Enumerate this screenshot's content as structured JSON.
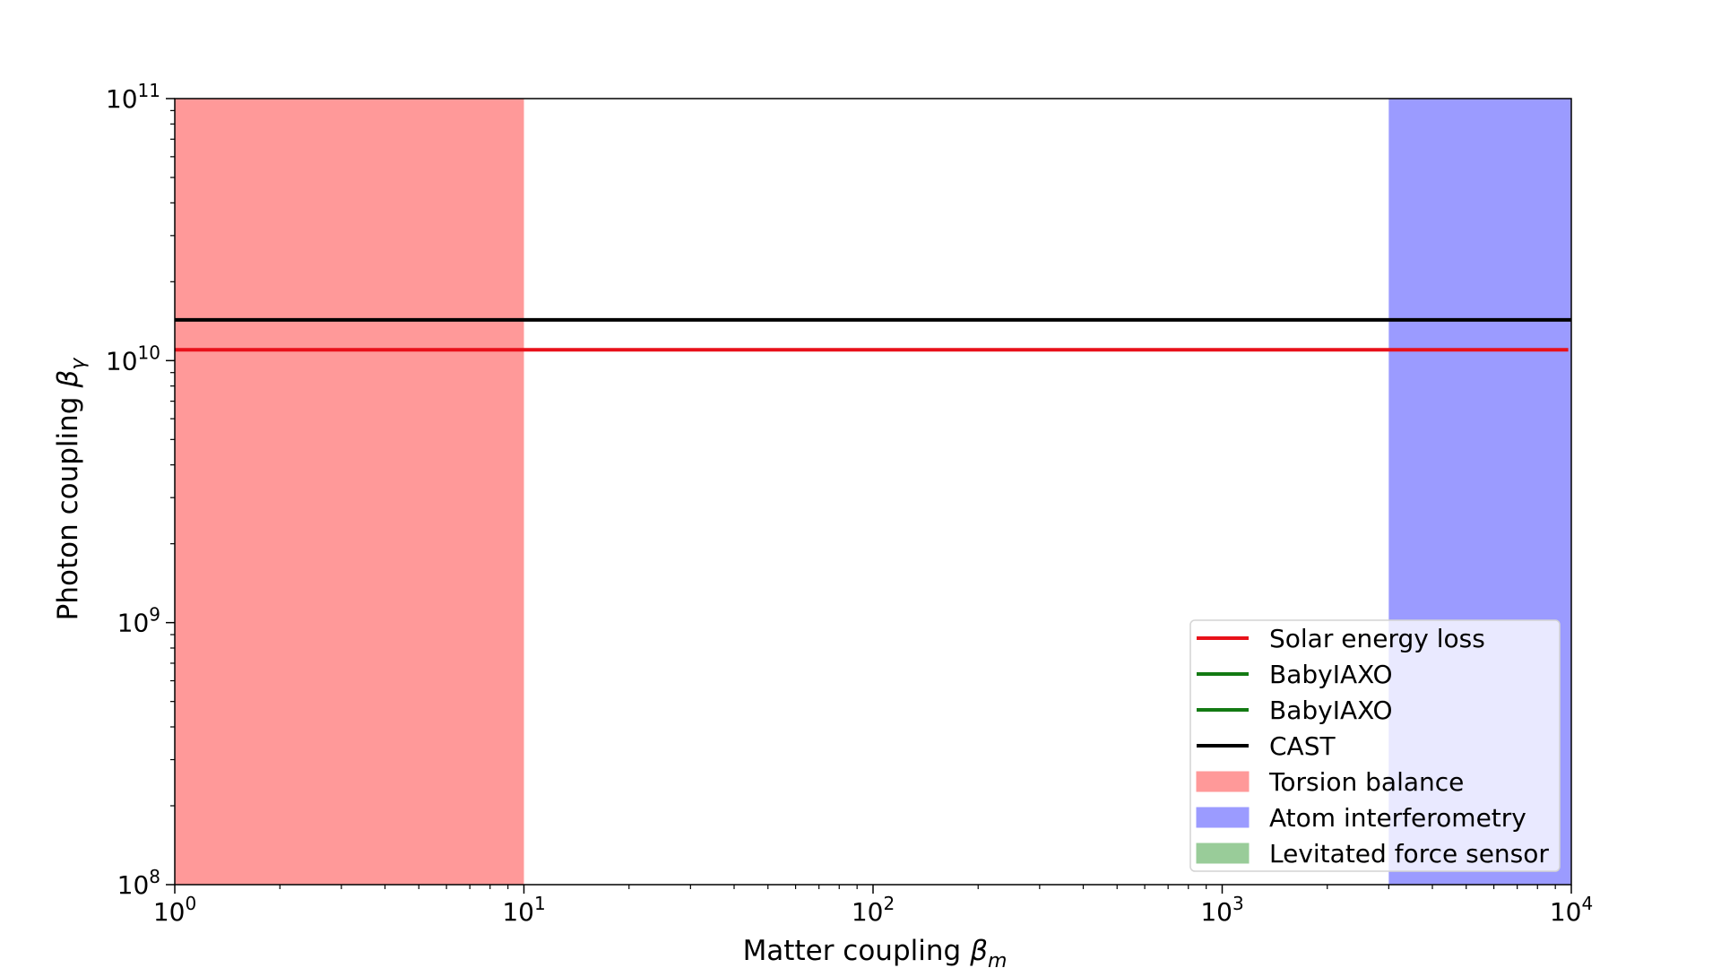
{
  "chart_data": {
    "type": "line",
    "xlabel": "Matter coupling",
    "xlabel_symbol": "β",
    "xlabel_sub": "m",
    "ylabel": "Photon coupling",
    "ylabel_symbol": "β",
    "ylabel_sub": "γ",
    "xscale": "log",
    "yscale": "log",
    "xlim": [
      1,
      10000
    ],
    "ylim": [
      100000000,
      100000000000
    ],
    "xticks": [
      {
        "value": 1,
        "base": "10",
        "exp": "0"
      },
      {
        "value": 10,
        "base": "10",
        "exp": "1"
      },
      {
        "value": 100,
        "base": "10",
        "exp": "2"
      },
      {
        "value": 1000,
        "base": "10",
        "exp": "3"
      },
      {
        "value": 10000,
        "base": "10",
        "exp": "4"
      }
    ],
    "yticks": [
      {
        "value": 100000000,
        "base": "10",
        "exp": "8"
      },
      {
        "value": 1000000000,
        "base": "10",
        "exp": "9"
      },
      {
        "value": 10000000000,
        "base": "10",
        "exp": "10"
      },
      {
        "value": 100000000000,
        "base": "10",
        "exp": "11"
      }
    ],
    "grid": false,
    "legend_position": "lower right",
    "lines": [
      {
        "name": "Solar energy loss",
        "color": "#e8111a",
        "x": [
          1,
          9800
        ],
        "y": [
          11000000000,
          11000000000
        ]
      },
      {
        "name": "BabyIAXO",
        "color": "#137a13",
        "x": [],
        "y": []
      },
      {
        "name": "BabyIAXO",
        "color": "#137a13",
        "x": [],
        "y": []
      },
      {
        "name": "CAST",
        "color": "#000000",
        "x": [
          1,
          10000
        ],
        "y": [
          14300000000,
          14300000000
        ]
      }
    ],
    "regions": [
      {
        "name": "Torsion balance",
        "color": "#ff9999",
        "x_range": [
          1,
          10
        ],
        "y_range": [
          100000000,
          100000000000
        ]
      },
      {
        "name": "Atom interferometry",
        "color": "#9b9bff",
        "x_range": [
          3000,
          10000
        ],
        "y_range": [
          100000000,
          100000000000
        ]
      },
      {
        "name": "Levitated force sensor",
        "color": "#99cc99",
        "x_range": [],
        "y_range": []
      }
    ]
  }
}
